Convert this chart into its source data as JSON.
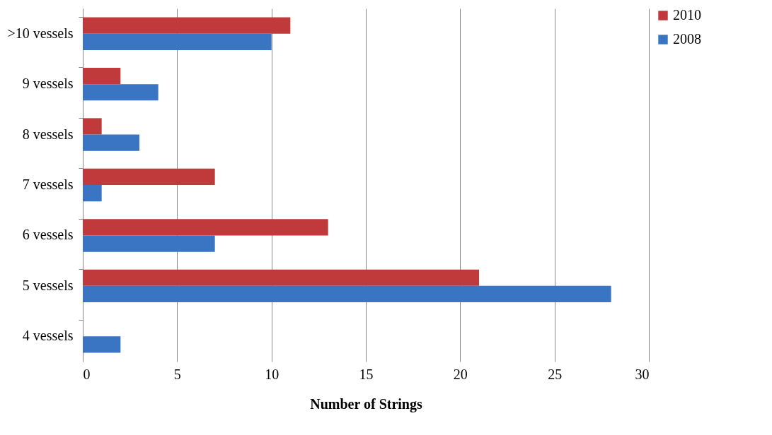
{
  "chart_data": {
    "type": "bar",
    "orientation": "horizontal",
    "xlabel": "Number of Strings",
    "categories": [
      ">10 vessels",
      "9 vessels",
      "8 vessels",
      "7 vessels",
      "6 vessels",
      "5 vessels",
      "4 vessels"
    ],
    "series": [
      {
        "name": "2010",
        "color": "#c0393b",
        "values": [
          11,
          2,
          1,
          7,
          13,
          21,
          0
        ]
      },
      {
        "name": "2008",
        "color": "#3a75c4",
        "values": [
          10,
          4,
          3,
          1,
          7,
          28,
          2
        ]
      }
    ],
    "xlim": [
      0,
      30
    ],
    "xticks": [
      0,
      5,
      10,
      15,
      20,
      25,
      30
    ],
    "grid": "x",
    "legend": "right"
  }
}
